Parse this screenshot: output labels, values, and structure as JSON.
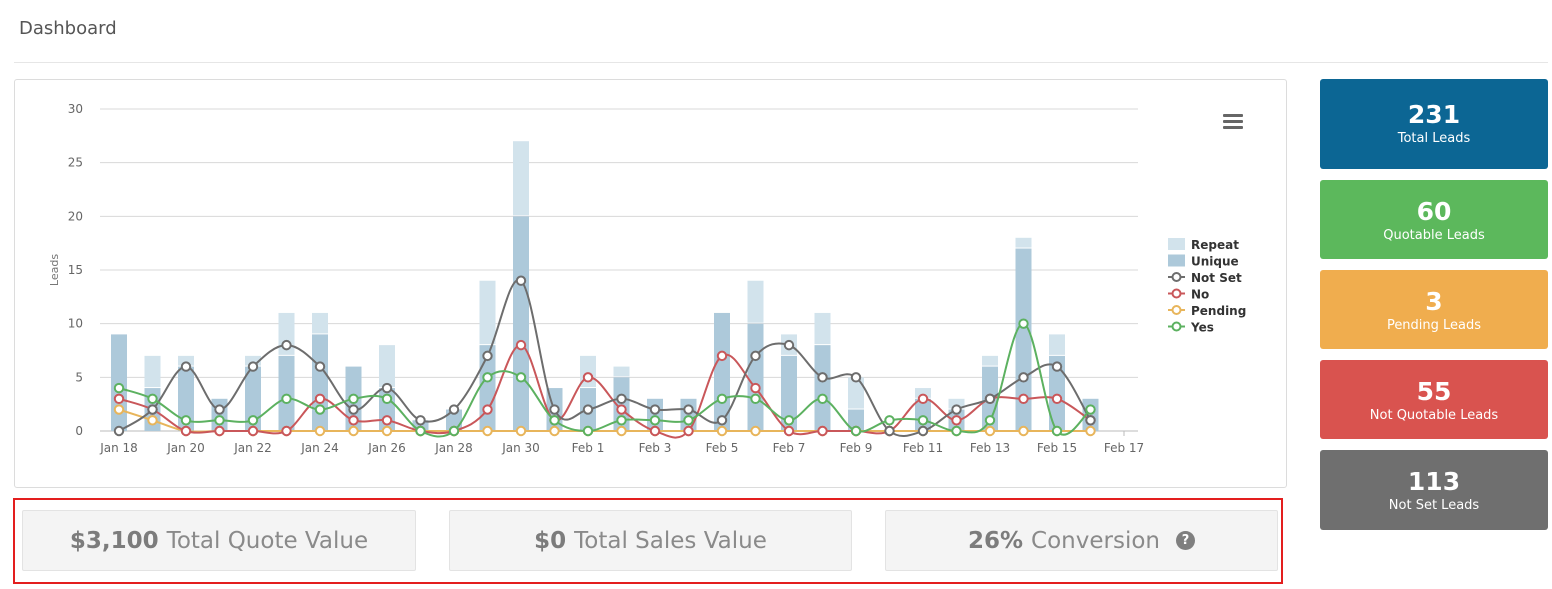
{
  "page": {
    "title": "Dashboard"
  },
  "stats": [
    {
      "value": "231",
      "label": "Total Leads",
      "color": "#0c6694"
    },
    {
      "value": "60",
      "label": "Quotable Leads",
      "color": "#5cb85c"
    },
    {
      "value": "3",
      "label": "Pending Leads",
      "color": "#f0ad4e"
    },
    {
      "value": "55",
      "label": "Not Quotable Leads",
      "color": "#d9534f"
    },
    {
      "value": "113",
      "label": "Not Set Leads",
      "color": "#6f6f6f"
    }
  ],
  "metrics": {
    "quote": {
      "value": "$3,100",
      "label": "Total Quote Value"
    },
    "sales": {
      "value": "$0",
      "label": "Total Sales Value"
    },
    "conversion": {
      "value": "26%",
      "label": "Conversion",
      "help": "?"
    }
  },
  "chart_data": {
    "type": "bar",
    "ylabel": "Leads",
    "ylim": [
      0,
      30
    ],
    "yticks": [
      "0",
      "5",
      "10",
      "15",
      "20",
      "25",
      "30"
    ],
    "xlim": [
      0,
      30
    ],
    "xticks": [
      {
        "x": 0,
        "label": "Jan 18"
      },
      {
        "x": 2,
        "label": "Jan 20"
      },
      {
        "x": 4,
        "label": "Jan 22"
      },
      {
        "x": 6,
        "label": "Jan 24"
      },
      {
        "x": 8,
        "label": "Jan 26"
      },
      {
        "x": 10,
        "label": "Jan 28"
      },
      {
        "x": 12,
        "label": "Jan 30"
      },
      {
        "x": 14,
        "label": "Feb 1"
      },
      {
        "x": 16,
        "label": "Feb 3"
      },
      {
        "x": 18,
        "label": "Feb 5"
      },
      {
        "x": 20,
        "label": "Feb 7"
      },
      {
        "x": 22,
        "label": "Feb 9"
      },
      {
        "x": 24,
        "label": "Feb 11"
      },
      {
        "x": 26,
        "label": "Feb 13"
      },
      {
        "x": 28,
        "label": "Feb 15"
      },
      {
        "x": 30,
        "label": "Feb 17"
      }
    ],
    "legend_position": "right",
    "grid": true,
    "bar_series": [
      {
        "name": "Repeat",
        "color": "#d2e3ec",
        "values": [
          0,
          3,
          1,
          0,
          1,
          4,
          2,
          0,
          4,
          0,
          0,
          6,
          7,
          0,
          3,
          1,
          0,
          0,
          0,
          4,
          2,
          3,
          3,
          0,
          1,
          1,
          1,
          1,
          2,
          0
        ]
      },
      {
        "name": "Unique",
        "color": "#adc9da",
        "values": [
          9,
          4,
          6,
          3,
          6,
          7,
          9,
          6,
          4,
          1,
          2,
          8,
          20,
          4,
          4,
          5,
          3,
          3,
          11,
          10,
          7,
          8,
          2,
          0,
          3,
          2,
          6,
          17,
          7,
          3
        ]
      }
    ],
    "line_series": [
      {
        "name": "Not Set",
        "color": "#6d6d6d",
        "values": [
          0,
          2,
          6,
          2,
          6,
          8,
          6,
          2,
          4,
          1,
          2,
          7,
          14,
          2,
          2,
          3,
          2,
          2,
          1,
          7,
          8,
          5,
          5,
          0,
          0,
          2,
          3,
          5,
          6,
          1
        ]
      },
      {
        "name": "No",
        "color": "#c9575a",
        "values": [
          3,
          2,
          0,
          0,
          0,
          0,
          3,
          1,
          1,
          0,
          0,
          2,
          8,
          1,
          5,
          2,
          0,
          0,
          7,
          4,
          0,
          0,
          0,
          0,
          3,
          1,
          3,
          3,
          3,
          1
        ]
      },
      {
        "name": "Pending",
        "color": "#e8b55b",
        "values": [
          2,
          1,
          0,
          0,
          0,
          0,
          0,
          0,
          0,
          0,
          0,
          0,
          0,
          0,
          0,
          0,
          0,
          0,
          0,
          0,
          0,
          0,
          0,
          0,
          0,
          0,
          0,
          0,
          0,
          0
        ]
      },
      {
        "name": "Yes",
        "color": "#5cb160",
        "values": [
          4,
          3,
          1,
          1,
          1,
          3,
          2,
          3,
          3,
          0,
          0,
          5,
          5,
          1,
          0,
          1,
          1,
          1,
          3,
          3,
          1,
          3,
          0,
          1,
          1,
          0,
          1,
          10,
          0,
          2
        ]
      }
    ]
  }
}
